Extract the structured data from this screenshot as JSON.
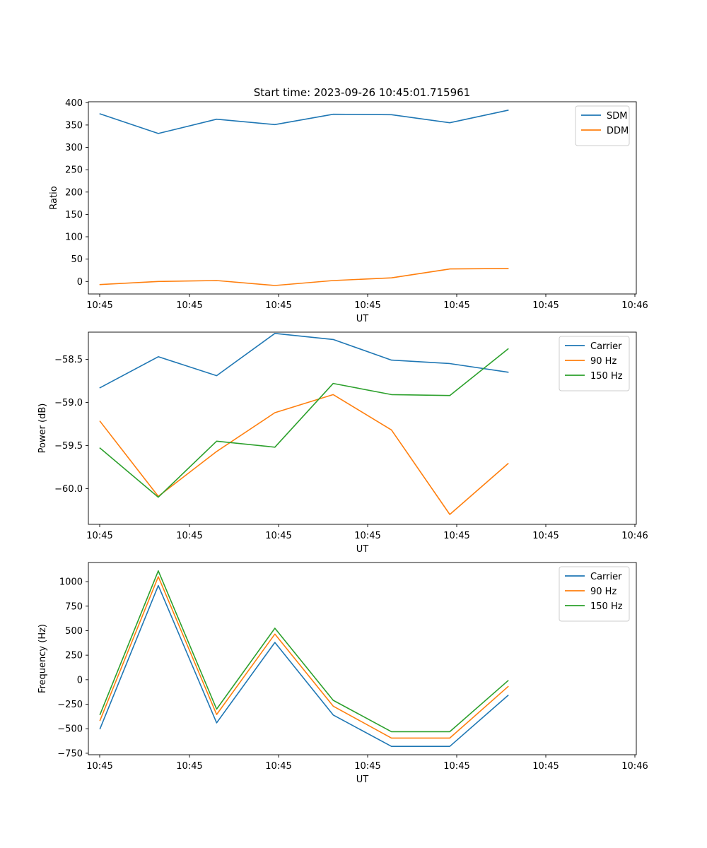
{
  "figure": {
    "suptitle": "Start time: 2023-09-26 10:45:01.715961"
  },
  "colors": {
    "series1": "#1f77b4",
    "series2": "#ff7f0e",
    "series3": "#2ca02c"
  },
  "chart_data": [
    {
      "type": "line",
      "title": "Start time: 2023-09-26 10:45:01.715961",
      "xlabel": "UT",
      "ylabel": "Ratio",
      "x": [
        1,
        2,
        3,
        4,
        5,
        6,
        7,
        8
      ],
      "xlim": [
        0.8,
        10.2
      ],
      "xticks": [
        1,
        2.5,
        4,
        5.5,
        7,
        8.5,
        10
      ],
      "xtick_labels": [
        "10:45",
        "10:45",
        "10:45",
        "10:45",
        "10:45",
        "10:45",
        "10:46"
      ],
      "xticks_pos": [
        0.8,
        2.3,
        3.8,
        5.3,
        6.8,
        8.3,
        10.2
      ],
      "ylim": [
        -28,
        402
      ],
      "yticks": [
        0,
        50,
        100,
        150,
        200,
        250,
        300,
        350,
        400
      ],
      "ytick_labels": [
        "0",
        "50",
        "100",
        "150",
        "200",
        "250",
        "300",
        "350",
        "400"
      ],
      "legend": "top-right",
      "series": [
        {
          "name": "SDM",
          "color": "#1f77b4",
          "values": [
            375,
            331,
            363,
            351,
            374,
            373,
            355,
            383
          ]
        },
        {
          "name": "DDM",
          "color": "#ff7f0e",
          "values": [
            -7,
            0,
            2,
            -9,
            2,
            8,
            28,
            29
          ]
        }
      ]
    },
    {
      "type": "line",
      "title": "",
      "xlabel": "UT",
      "ylabel": "Power (dB)",
      "x": [
        1,
        2,
        3,
        4,
        5,
        6,
        7,
        8
      ],
      "xlim": [
        0.8,
        10.2
      ],
      "xtick_labels": [
        "10:45",
        "10:45",
        "10:45",
        "10:45",
        "10:45",
        "10:45",
        "10:46"
      ],
      "xticks_pos": [
        0.8,
        2.3,
        3.8,
        5.3,
        6.8,
        8.3,
        10.2
      ],
      "ylim": [
        -60.415,
        -58.185
      ],
      "yticks": [
        -60.0,
        -59.5,
        -59.0,
        -58.5
      ],
      "ytick_labels": [
        "−60.0",
        "−59.5",
        "−59.0",
        "−58.5"
      ],
      "legend": "top-right",
      "series": [
        {
          "name": "Carrier",
          "color": "#1f77b4",
          "values": [
            -58.83,
            -58.47,
            -58.69,
            -58.2,
            -58.27,
            -58.51,
            -58.55,
            -58.65
          ]
        },
        {
          "name": "90 Hz",
          "color": "#ff7f0e",
          "values": [
            -59.22,
            -60.09,
            -59.57,
            -59.12,
            -58.91,
            -59.32,
            -60.3,
            -59.71
          ]
        },
        {
          "name": "150 Hz",
          "color": "#2ca02c",
          "values": [
            -59.53,
            -60.1,
            -59.45,
            -59.52,
            -58.78,
            -58.91,
            -58.92,
            -58.38
          ]
        }
      ]
    },
    {
      "type": "line",
      "title": "",
      "xlabel": "UT",
      "ylabel": "Frequency (Hz)",
      "x": [
        1,
        2,
        3,
        4,
        5,
        6,
        7,
        8
      ],
      "xlim": [
        0.8,
        10.2
      ],
      "xtick_labels": [
        "10:45",
        "10:45",
        "10:45",
        "10:45",
        "10:45",
        "10:45",
        "10:46"
      ],
      "xticks_pos": [
        0.8,
        2.3,
        3.8,
        5.3,
        6.8,
        8.3,
        10.2
      ],
      "ylim": [
        -765,
        1195
      ],
      "yticks": [
        -750,
        -500,
        -250,
        0,
        250,
        500,
        750,
        1000
      ],
      "ytick_labels": [
        "−750",
        "−500",
        "−250",
        "0",
        "250",
        "500",
        "750",
        "1000"
      ],
      "legend": "top-right",
      "series": [
        {
          "name": "Carrier",
          "color": "#1f77b4",
          "values": [
            -500,
            960,
            -440,
            380,
            -360,
            -680,
            -680,
            -160
          ]
        },
        {
          "name": "90 Hz",
          "color": "#ff7f0e",
          "values": [
            -415,
            1050,
            -355,
            465,
            -270,
            -595,
            -595,
            -70
          ]
        },
        {
          "name": "150 Hz",
          "color": "#2ca02c",
          "values": [
            -355,
            1110,
            -300,
            525,
            -210,
            -530,
            -530,
            -10
          ]
        }
      ]
    }
  ]
}
